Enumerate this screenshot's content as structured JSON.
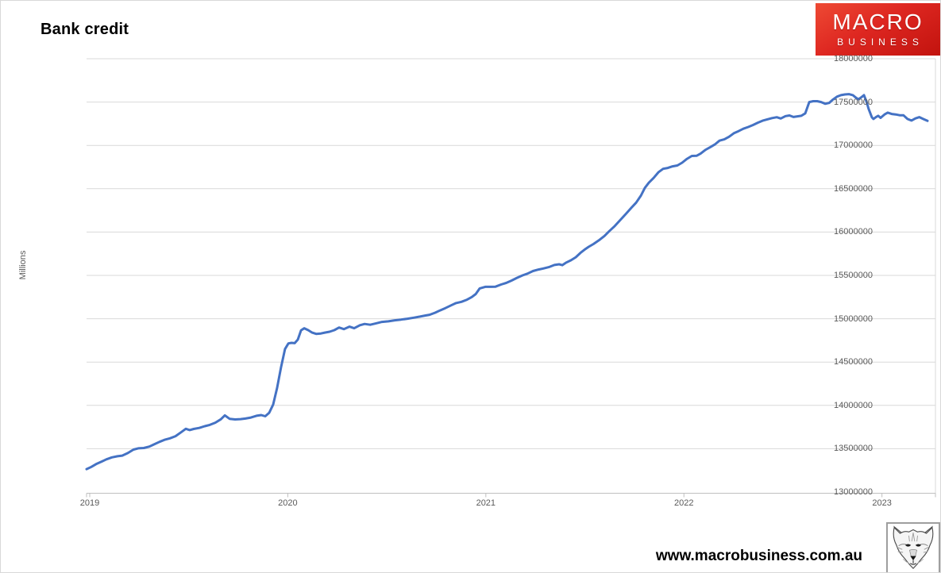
{
  "logo": {
    "line1": "MACRO",
    "line2": "BUSINESS",
    "bg_color": "#d6221c",
    "text_color": "#ffffff"
  },
  "footer": {
    "url": "www.macrobusiness.com.au"
  },
  "chart_data": {
    "type": "line",
    "title": "Bank credit",
    "xlabel": "",
    "ylabel": "Millions",
    "x_ticks": [
      2019,
      2020,
      2021,
      2022,
      2023
    ],
    "y_ticks": [
      13000000,
      13500000,
      14000000,
      14500000,
      15000000,
      15500000,
      16000000,
      16500000,
      17000000,
      17500000,
      18000000
    ],
    "ylim": [
      13000000,
      18000000
    ],
    "xlim": [
      2018.984,
      2023.27
    ],
    "grid": "horizontal",
    "legend": "none",
    "line_color": "#4472c4",
    "grid_color": "#d9d9d9",
    "axis_color": "#bfbfbf",
    "series": [
      {
        "points": [
          [
            2018.984,
            13265000
          ],
          [
            2019.008,
            13290000
          ],
          [
            2019.032,
            13322000
          ],
          [
            2019.06,
            13352000
          ],
          [
            2019.084,
            13377000
          ],
          [
            2019.112,
            13400000
          ],
          [
            2019.14,
            13413000
          ],
          [
            2019.164,
            13420000
          ],
          [
            2019.192,
            13450000
          ],
          [
            2019.221,
            13490000
          ],
          [
            2019.245,
            13505000
          ],
          [
            2019.273,
            13508000
          ],
          [
            2019.301,
            13525000
          ],
          [
            2019.325,
            13550000
          ],
          [
            2019.353,
            13580000
          ],
          [
            2019.381,
            13605000
          ],
          [
            2019.405,
            13620000
          ],
          [
            2019.433,
            13645000
          ],
          [
            2019.461,
            13690000
          ],
          [
            2019.485,
            13730000
          ],
          [
            2019.505,
            13715000
          ],
          [
            2019.525,
            13728000
          ],
          [
            2019.553,
            13740000
          ],
          [
            2019.581,
            13760000
          ],
          [
            2019.606,
            13775000
          ],
          [
            2019.634,
            13800000
          ],
          [
            2019.662,
            13840000
          ],
          [
            2019.682,
            13885000
          ],
          [
            2019.706,
            13845000
          ],
          [
            2019.734,
            13838000
          ],
          [
            2019.762,
            13842000
          ],
          [
            2019.786,
            13848000
          ],
          [
            2019.814,
            13860000
          ],
          [
            2019.842,
            13880000
          ],
          [
            2019.866,
            13888000
          ],
          [
            2019.886,
            13875000
          ],
          [
            2019.906,
            13915000
          ],
          [
            2019.926,
            14010000
          ],
          [
            2019.946,
            14200000
          ],
          [
            2019.966,
            14440000
          ],
          [
            2019.986,
            14650000
          ],
          [
            2020.003,
            14715000
          ],
          [
            2020.019,
            14722000
          ],
          [
            2020.035,
            14718000
          ],
          [
            2020.051,
            14760000
          ],
          [
            2020.067,
            14865000
          ],
          [
            2020.083,
            14890000
          ],
          [
            2020.103,
            14868000
          ],
          [
            2020.123,
            14840000
          ],
          [
            2020.143,
            14825000
          ],
          [
            2020.167,
            14830000
          ],
          [
            2020.187,
            14840000
          ],
          [
            2020.211,
            14850000
          ],
          [
            2020.235,
            14868000
          ],
          [
            2020.259,
            14898000
          ],
          [
            2020.283,
            14880000
          ],
          [
            2020.311,
            14908000
          ],
          [
            2020.335,
            14890000
          ],
          [
            2020.364,
            14925000
          ],
          [
            2020.388,
            14940000
          ],
          [
            2020.416,
            14930000
          ],
          [
            2020.444,
            14945000
          ],
          [
            2020.476,
            14963000
          ],
          [
            2020.508,
            14970000
          ],
          [
            2020.54,
            14982000
          ],
          [
            2020.572,
            14990000
          ],
          [
            2020.604,
            15000000
          ],
          [
            2020.636,
            15012000
          ],
          [
            2020.668,
            15025000
          ],
          [
            2020.696,
            15038000
          ],
          [
            2020.716,
            15046000
          ],
          [
            2020.744,
            15070000
          ],
          [
            2020.768,
            15095000
          ],
          [
            2020.796,
            15123000
          ],
          [
            2020.825,
            15155000
          ],
          [
            2020.849,
            15180000
          ],
          [
            2020.877,
            15195000
          ],
          [
            2020.905,
            15220000
          ],
          [
            2020.929,
            15250000
          ],
          [
            2020.949,
            15285000
          ],
          [
            2020.969,
            15350000
          ],
          [
            2020.997,
            15368000
          ],
          [
            2021.025,
            15368000
          ],
          [
            2021.049,
            15370000
          ],
          [
            2021.077,
            15395000
          ],
          [
            2021.105,
            15415000
          ],
          [
            2021.129,
            15440000
          ],
          [
            2021.157,
            15472000
          ],
          [
            2021.185,
            15500000
          ],
          [
            2021.21,
            15520000
          ],
          [
            2021.238,
            15550000
          ],
          [
            2021.266,
            15568000
          ],
          [
            2021.29,
            15580000
          ],
          [
            2021.318,
            15595000
          ],
          [
            2021.346,
            15620000
          ],
          [
            2021.37,
            15628000
          ],
          [
            2021.386,
            15618000
          ],
          [
            2021.406,
            15648000
          ],
          [
            2021.43,
            15675000
          ],
          [
            2021.454,
            15710000
          ],
          [
            2021.478,
            15760000
          ],
          [
            2021.503,
            15805000
          ],
          [
            2021.519,
            15830000
          ],
          [
            2021.543,
            15862000
          ],
          [
            2021.571,
            15905000
          ],
          [
            2021.599,
            15955000
          ],
          [
            2021.623,
            16010000
          ],
          [
            2021.651,
            16070000
          ],
          [
            2021.679,
            16140000
          ],
          [
            2021.707,
            16210000
          ],
          [
            2021.735,
            16280000
          ],
          [
            2021.759,
            16340000
          ],
          [
            2021.783,
            16420000
          ],
          [
            2021.803,
            16510000
          ],
          [
            2021.823,
            16570000
          ],
          [
            2021.847,
            16625000
          ],
          [
            2021.871,
            16690000
          ],
          [
            2021.895,
            16730000
          ],
          [
            2021.919,
            16740000
          ],
          [
            2021.943,
            16758000
          ],
          [
            2021.967,
            16768000
          ],
          [
            2021.991,
            16800000
          ],
          [
            2022.016,
            16845000
          ],
          [
            2022.04,
            16878000
          ],
          [
            2022.064,
            16880000
          ],
          [
            2022.084,
            16905000
          ],
          [
            2022.108,
            16948000
          ],
          [
            2022.132,
            16978000
          ],
          [
            2022.156,
            17010000
          ],
          [
            2022.18,
            17055000
          ],
          [
            2022.204,
            17070000
          ],
          [
            2022.228,
            17100000
          ],
          [
            2022.252,
            17140000
          ],
          [
            2022.276,
            17165000
          ],
          [
            2022.3,
            17192000
          ],
          [
            2022.325,
            17212000
          ],
          [
            2022.349,
            17235000
          ],
          [
            2022.373,
            17262000
          ],
          [
            2022.397,
            17285000
          ],
          [
            2022.421,
            17300000
          ],
          [
            2022.445,
            17315000
          ],
          [
            2022.469,
            17325000
          ],
          [
            2022.489,
            17310000
          ],
          [
            2022.513,
            17338000
          ],
          [
            2022.533,
            17345000
          ],
          [
            2022.553,
            17328000
          ],
          [
            2022.573,
            17335000
          ],
          [
            2022.593,
            17342000
          ],
          [
            2022.613,
            17370000
          ],
          [
            2022.633,
            17500000
          ],
          [
            2022.653,
            17510000
          ],
          [
            2022.673,
            17510000
          ],
          [
            2022.693,
            17500000
          ],
          [
            2022.713,
            17480000
          ],
          [
            2022.733,
            17490000
          ],
          [
            2022.753,
            17530000
          ],
          [
            2022.773,
            17562000
          ],
          [
            2022.793,
            17580000
          ],
          [
            2022.813,
            17588000
          ],
          [
            2022.833,
            17592000
          ],
          [
            2022.853,
            17580000
          ],
          [
            2022.869,
            17549000
          ],
          [
            2022.881,
            17532000
          ],
          [
            2022.897,
            17558000
          ],
          [
            2022.909,
            17580000
          ],
          [
            2022.921,
            17510000
          ],
          [
            2022.933,
            17420000
          ],
          [
            2022.949,
            17325000
          ],
          [
            2022.957,
            17305000
          ],
          [
            2022.969,
            17325000
          ],
          [
            2022.981,
            17342000
          ],
          [
            2022.993,
            17318000
          ],
          [
            2023.013,
            17357000
          ],
          [
            2023.029,
            17378000
          ],
          [
            2023.049,
            17363000
          ],
          [
            2023.069,
            17357000
          ],
          [
            2023.089,
            17348000
          ],
          [
            2023.109,
            17347000
          ],
          [
            2023.129,
            17305000
          ],
          [
            2023.149,
            17287000
          ],
          [
            2023.169,
            17311000
          ],
          [
            2023.189,
            17326000
          ],
          [
            2023.209,
            17304000
          ],
          [
            2023.23,
            17283000
          ]
        ]
      }
    ]
  }
}
